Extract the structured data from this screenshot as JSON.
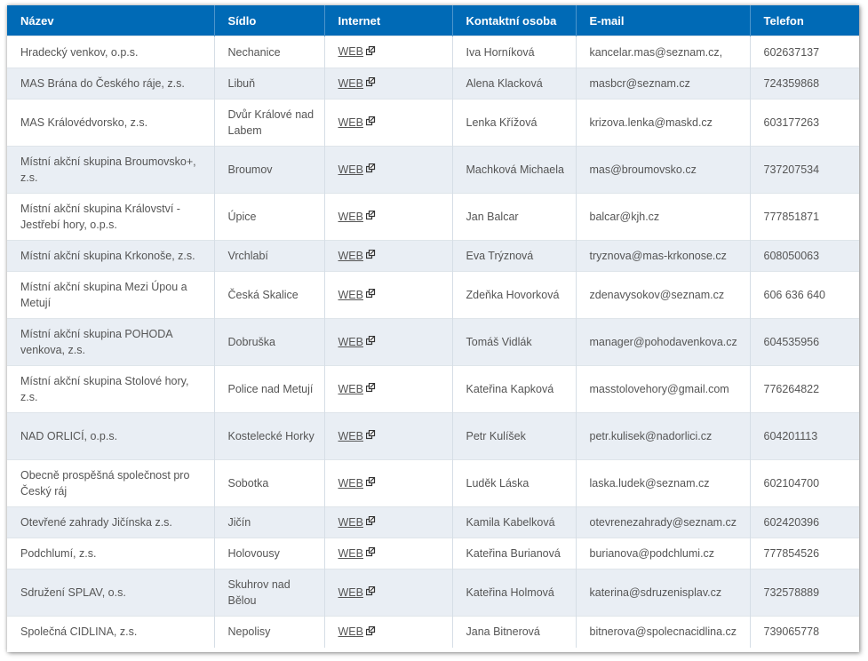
{
  "headers": [
    "Název",
    "Sídlo",
    "Internet",
    "Kontaktní osoba",
    "E-mail",
    "Telefon"
  ],
  "rows": [
    {
      "name": "Hradecký venkov, o.p.s.",
      "seat": "Nechanice",
      "web": "WEB",
      "contact": "Iva Horníková",
      "email": "kancelar.mas@seznam.cz,",
      "phone": "602637137"
    },
    {
      "name": "MAS Brána do Českého ráje, z.s.",
      "seat": "Libuň",
      "web": "WEB",
      "contact": "Alena Klacková",
      "email": "masbcr@seznam.cz",
      "phone": "724359868"
    },
    {
      "name": "MAS Královédvorsko, z.s.",
      "seat": "Dvůr Králové nad Labem",
      "web": "WEB",
      "contact": "Lenka Křížová",
      "email": "krizova.lenka@maskd.cz",
      "phone": "603177263"
    },
    {
      "name": "Místní akční skupina Broumovsko+, z.s.",
      "seat": "Broumov",
      "web": "WEB",
      "contact": "Machková Michaela",
      "email": "mas@broumovsko.cz",
      "phone": "737207534"
    },
    {
      "name": "Místní akční skupina Království - Jestřebí hory, o.p.s.",
      "seat": "Úpice",
      "web": "WEB",
      "contact": "Jan Balcar",
      "email": "balcar@kjh.cz",
      "phone": "777851871"
    },
    {
      "name": "Místní akční skupina Krkonoše, z.s.",
      "seat": "Vrchlabí",
      "web": "WEB",
      "contact": "Eva Trýznová",
      "email": " tryznova@mas-krkonose.cz",
      "phone": "608050063"
    },
    {
      "name": "Místní akční skupina Mezi Úpou a Metují",
      "seat": "Česká Skalice",
      "web": "WEB",
      "contact": "Zdeňka Hovorková",
      "email": "zdenavysokov@seznam.cz",
      "phone": "606 636 640"
    },
    {
      "name": "Místní akční skupina POHODA venkova, z.s.",
      "seat": "Dobruška",
      "web": "WEB",
      "contact": "Tomáš Vidlák",
      "email": "manager@pohodavenkova.cz",
      "phone": "604535956"
    },
    {
      "name": "Místní akční skupina Stolové hory, z.s.",
      "seat": "Police nad Metují",
      "web": "WEB",
      "contact": "Kateřina Kapková",
      "email": "masstolovehory@gmail.com",
      "phone": "776264822"
    },
    {
      "name": "NAD ORLICÍ, o.p.s.",
      "seat": "Kostelecké Horky",
      "web": "WEB",
      "contact": "Petr Kulíšek",
      "email": "petr.kulisek@nadorlici.cz",
      "phone": "604201113"
    },
    {
      "name": "Obecně prospěšná společnost pro Český ráj",
      "seat": "Sobotka",
      "web": "WEB",
      "contact": "Luděk Láska",
      "email": "laska.ludek@seznam.cz",
      "phone": "602104700"
    },
    {
      "name": "Otevřené zahrady Jičínska z.s.",
      "seat": "Jičín",
      "web": "WEB",
      "contact": "Kamila Kabelková",
      "email": "otevrenezahrady@seznam.cz",
      "phone": "602420396"
    },
    {
      "name": "Podchlumí, z.s.",
      "seat": "Holovousy",
      "web": "WEB",
      "contact": "Kateřina Burianová",
      "email": "burianova@podchlumi.cz",
      "phone": "777854526"
    },
    {
      "name": "Sdružení SPLAV, o.s.",
      "seat": "Skuhrov nad Bělou",
      "web": "WEB",
      "contact": "Kateřina Holmová",
      "email": "katerina@sdruzenisplav.cz",
      "phone": "732578889"
    },
    {
      "name": "Společná CIDLINA, z.s.",
      "seat": "Nepolisy",
      "web": "WEB",
      "contact": "Jana Bitnerová",
      "email": "bitnerova@spolecnacidlina.cz",
      "phone": "739065778"
    }
  ],
  "icons": {
    "external_link": "external-link-icon"
  },
  "colors": {
    "header_bg": "#006ab6",
    "stripe_bg": "#e9eef4",
    "text": "#555555"
  }
}
